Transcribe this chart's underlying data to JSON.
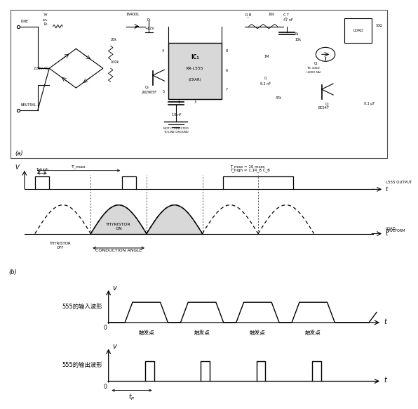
{
  "bg_color": "#ffffff",
  "section_b": {
    "t_high_label": "T_high",
    "t_max_label": "T_max",
    "annotation1": "T_max = 10 msec",
    "annotation2": "T_high = 1.1R_B C_B",
    "l555_output_label": "L555 OUTPUT",
    "load_waveform_label": "LOAD\nWAVEFORM",
    "thyristor_off_label": "THYRISTOR\nOFF",
    "thyristor_on_label": "THYRISTOR\nON",
    "conduction_angle_label": "CONDUCTION ANGLE",
    "v_label": "V"
  },
  "section_c_top": {
    "label": "555的输入波形",
    "v_label": "v",
    "t_label": "t",
    "trigger_labels": [
      "触发点",
      "触发点",
      "触发点",
      "触发点"
    ]
  },
  "section_c_bottom": {
    "label": "555的输出波形",
    "v_label": "v",
    "t_label": "t",
    "tp_label": "t_p"
  }
}
